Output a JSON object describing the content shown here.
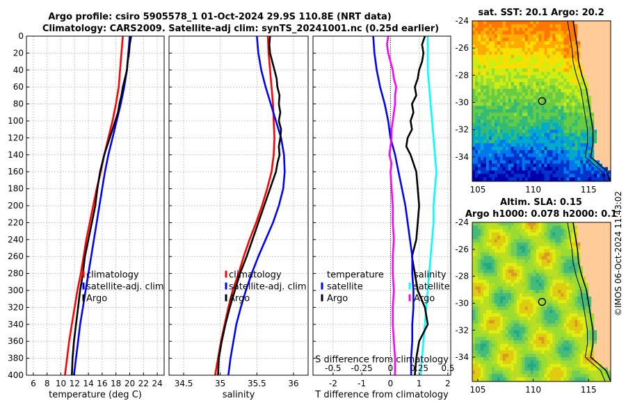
{
  "titles": {
    "line1": "Argo profile: csiro 5905578_1 01-Oct-2024 29.9S 110.8E (NRT data)",
    "line2": "Climatology: CARS2009. Satellite-adj clim: synTS_20241001.nc (0.25d earlier)",
    "sst_map": "sat. SST: 20.1 Argo: 20.2",
    "sla_line1": "Altim. SLA: 0.15",
    "sla_line2": "Argo h1000: 0.078 h2000: 0.1"
  },
  "credit": "©IMOS 06-Oct-2024 11:43:02",
  "colors": {
    "climatology": "#ff0000",
    "satellite": "#0000ff",
    "argo": "#000000",
    "temp_diff": "#00ffff",
    "sal_diff": "#ff00ff",
    "grid": "#c8c8c8",
    "coast": "#000000"
  },
  "chart_data": [
    {
      "type": "line",
      "name": "temperature-profile",
      "xlabel": "temperature (deg C)",
      "ylabel": "depth",
      "xlim": [
        5,
        25
      ],
      "ylim": [
        0,
        400
      ],
      "xticks": [
        6,
        8,
        10,
        12,
        14,
        16,
        18,
        20,
        22,
        24
      ],
      "yticks": [
        0,
        20,
        40,
        60,
        80,
        100,
        120,
        140,
        160,
        180,
        200,
        220,
        240,
        260,
        280,
        300,
        320,
        340,
        360,
        380,
        400
      ],
      "legend": [
        "climatology",
        "satellite-adj. clim",
        "Argo"
      ],
      "series": [
        {
          "name": "climatology",
          "depth": [
            0,
            20,
            40,
            60,
            80,
            100,
            120,
            140,
            160,
            180,
            200,
            220,
            240,
            260,
            280,
            300,
            320,
            340,
            360,
            380,
            400
          ],
          "values": [
            19.0,
            18.8,
            18.6,
            18.4,
            18.0,
            17.5,
            16.9,
            16.3,
            15.8,
            15.2,
            14.7,
            14.2,
            13.7,
            13.3,
            12.9,
            12.4,
            12.0,
            11.6,
            11.2,
            10.9,
            10.6
          ]
        },
        {
          "name": "satellite-adj. clim",
          "depth": [
            0,
            20,
            40,
            60,
            80,
            100,
            120,
            140,
            160,
            180,
            200,
            220,
            240,
            260,
            280,
            300,
            320,
            340,
            360,
            380,
            400
          ],
          "values": [
            20.0,
            19.8,
            19.6,
            19.2,
            18.7,
            18.1,
            17.5,
            16.9,
            16.4,
            16.0,
            15.6,
            15.2,
            14.8,
            14.4,
            14.0,
            13.6,
            13.2,
            12.8,
            12.5,
            12.2,
            11.9
          ]
        },
        {
          "name": "Argo",
          "depth": [
            0,
            10,
            20,
            30,
            40,
            50,
            60,
            70,
            80,
            90,
            100,
            110,
            120,
            130,
            140,
            150,
            160,
            180,
            200,
            220,
            240,
            260,
            280,
            300,
            320,
            340,
            360,
            380,
            400
          ],
          "values": [
            20.2,
            20.0,
            19.9,
            19.7,
            19.6,
            19.3,
            19.0,
            18.8,
            18.5,
            18.3,
            17.9,
            17.5,
            17.1,
            16.7,
            16.3,
            16.0,
            15.7,
            15.3,
            15.0,
            14.5,
            14.0,
            13.5,
            13.2,
            12.8,
            12.5,
            12.2,
            11.9,
            11.7,
            11.6
          ]
        }
      ]
    },
    {
      "type": "line",
      "name": "salinity-profile",
      "xlabel": "salinity",
      "ylabel": "depth",
      "xlim": [
        34.3,
        36.2
      ],
      "ylim": [
        0,
        400
      ],
      "xticks": [
        34.5,
        35,
        35.5,
        36
      ],
      "xticklabels": [
        "34.5",
        "35",
        "35.5",
        "36"
      ],
      "legend": [
        "climatology",
        "satellite-adj. clim",
        "Argo"
      ],
      "series": [
        {
          "name": "climatology",
          "depth": [
            0,
            20,
            40,
            60,
            80,
            100,
            120,
            140,
            160,
            180,
            200,
            220,
            240,
            260,
            280,
            300,
            320,
            340,
            360,
            380,
            400
          ],
          "values": [
            35.65,
            35.66,
            35.68,
            35.7,
            35.72,
            35.73,
            35.74,
            35.73,
            35.7,
            35.64,
            35.57,
            35.49,
            35.4,
            35.32,
            35.25,
            35.17,
            35.11,
            35.06,
            35.01,
            34.97,
            34.93
          ]
        },
        {
          "name": "satellite-adj. clim",
          "depth": [
            0,
            20,
            40,
            60,
            80,
            100,
            120,
            140,
            160,
            180,
            200,
            220,
            240,
            260,
            280,
            300,
            320,
            340,
            360,
            380,
            400
          ],
          "values": [
            35.5,
            35.52,
            35.56,
            35.62,
            35.69,
            35.76,
            35.83,
            35.87,
            35.88,
            35.86,
            35.8,
            35.72,
            35.62,
            35.52,
            35.43,
            35.35,
            35.28,
            35.22,
            35.18,
            35.14,
            35.11
          ]
        },
        {
          "name": "Argo",
          "depth": [
            0,
            10,
            20,
            30,
            40,
            50,
            60,
            70,
            80,
            90,
            100,
            110,
            120,
            130,
            140,
            150,
            160,
            180,
            200,
            220,
            240,
            260,
            280,
            300,
            320,
            340,
            360,
            380,
            400
          ],
          "values": [
            35.68,
            35.67,
            35.68,
            35.71,
            35.74,
            35.77,
            35.78,
            35.81,
            35.8,
            35.82,
            35.8,
            35.83,
            35.82,
            35.8,
            35.81,
            35.78,
            35.76,
            35.68,
            35.6,
            35.52,
            35.44,
            35.36,
            35.27,
            35.2,
            35.13,
            35.07,
            35.02,
            34.98,
            34.97
          ]
        }
      ]
    },
    {
      "type": "line",
      "name": "difference-profile",
      "xlabel": "T difference from climatology",
      "x2label": "S difference from climatology",
      "xlim": [
        -2.7,
        2.1
      ],
      "ylim": [
        0,
        400
      ],
      "xticks": [
        -2,
        -1,
        0,
        1,
        2
      ],
      "x2ticks": [
        -0.5,
        -0.25,
        0,
        0.25,
        0.5
      ],
      "x2ticklabels": [
        "-0.5",
        "-0.25",
        "0",
        "0.25",
        "0.5"
      ],
      "legend_left": [
        "temperature",
        "satellite",
        "Argo"
      ],
      "legend_right": [
        "salinity",
        "satellite",
        "Argo"
      ],
      "series": [
        {
          "name": "temperature satellite",
          "depth": [
            0,
            20,
            40,
            60,
            80,
            100,
            120,
            140,
            160,
            180,
            200,
            220,
            240,
            260,
            280,
            300,
            320,
            340,
            360,
            380,
            400
          ],
          "values": [
            1.3,
            1.3,
            1.3,
            1.35,
            1.4,
            1.45,
            1.5,
            1.55,
            1.6,
            1.55,
            1.5,
            1.5,
            1.45,
            1.4,
            1.35,
            1.3,
            1.25,
            1.2,
            1.15,
            1.1,
            1.05
          ]
        },
        {
          "name": "temperature Argo",
          "depth": [
            0,
            10,
            20,
            30,
            40,
            50,
            60,
            70,
            80,
            90,
            100,
            110,
            120,
            130,
            140,
            150,
            160,
            180,
            200,
            220,
            240,
            260,
            280,
            300,
            320,
            340,
            360,
            380,
            400
          ],
          "values": [
            1.2,
            1.1,
            1.15,
            1.1,
            1.0,
            0.95,
            0.85,
            0.9,
            0.75,
            0.8,
            0.7,
            0.75,
            0.6,
            0.55,
            0.7,
            0.8,
            0.9,
            0.95,
            1.0,
            0.95,
            0.9,
            0.75,
            0.85,
            0.95,
            1.2,
            1.3,
            1.0,
            0.9,
            0.85
          ]
        },
        {
          "name": "salinity satellite",
          "depth": [
            0,
            20,
            40,
            60,
            80,
            100,
            120,
            140,
            160,
            180,
            200,
            220,
            240,
            260,
            280,
            300,
            320,
            340,
            360,
            380,
            400
          ],
          "values": [
            -0.15,
            -0.14,
            -0.12,
            -0.09,
            -0.05,
            -0.02,
            0.0,
            0.04,
            0.07,
            0.1,
            0.13,
            0.15,
            0.17,
            0.19,
            0.19,
            0.2,
            0.2,
            0.19,
            0.19,
            0.18,
            0.18
          ]
        },
        {
          "name": "salinity Argo",
          "depth": [
            0,
            10,
            20,
            30,
            40,
            50,
            60,
            70,
            80,
            90,
            100,
            110,
            120,
            130,
            140,
            150,
            160,
            180,
            200,
            220,
            240,
            260,
            280,
            300,
            320,
            340,
            360,
            380,
            400
          ],
          "values": [
            -0.02,
            -0.03,
            -0.02,
            0.0,
            0.02,
            0.03,
            0.05,
            0.04,
            0.04,
            0.03,
            0.02,
            0.01,
            0.01,
            0.0,
            -0.01,
            0.01,
            0.0,
            0.01,
            0.02,
            0.02,
            0.03,
            0.02,
            0.02,
            0.03,
            0.02,
            0.02,
            0.03,
            0.04,
            0.04
          ]
        }
      ]
    },
    {
      "type": "heatmap",
      "name": "sst-map",
      "title": "sat. SST: 20.1 Argo: 20.2",
      "xlim": [
        104.5,
        117
      ],
      "ylim": [
        -35.8,
        -24
      ],
      "xticks": [
        105,
        110,
        115
      ],
      "yticks": [
        -24,
        -26,
        -28,
        -30,
        -32,
        -34
      ],
      "yticklabels": [
        "-24",
        "-26",
        "-28",
        "-30",
        "-32",
        "-34"
      ],
      "argo_position": {
        "lon": 110.8,
        "lat": -29.9
      }
    },
    {
      "type": "heatmap",
      "name": "sla-map",
      "title": "Altim. SLA: 0.15",
      "xlim": [
        104.5,
        117
      ],
      "ylim": [
        -35.8,
        -24
      ],
      "xticks": [
        105,
        110,
        115
      ],
      "yticks": [
        -24,
        -26,
        -28,
        -30,
        -32,
        -34
      ],
      "yticklabels": [
        "-24",
        "-26",
        "-28",
        "-30",
        "-32",
        "-34"
      ],
      "argo_position": {
        "lon": 110.8,
        "lat": -29.9
      }
    }
  ]
}
